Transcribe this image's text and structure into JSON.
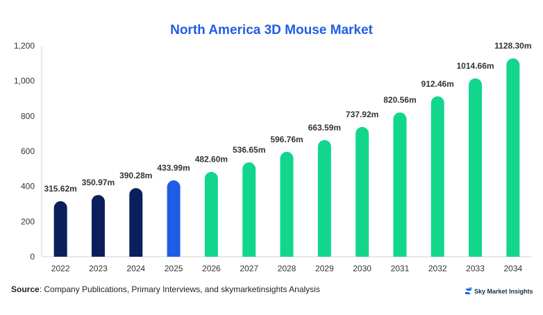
{
  "chart_data": {
    "type": "bar",
    "title": "North America 3D Mouse Market",
    "categories": [
      "2022",
      "2023",
      "2024",
      "2025",
      "2026",
      "2027",
      "2028",
      "2029",
      "2030",
      "2031",
      "2032",
      "2033",
      "2034"
    ],
    "values": [
      315.62,
      350.97,
      390.28,
      433.99,
      482.6,
      536.65,
      596.76,
      663.59,
      737.92,
      820.56,
      912.46,
      1014.66,
      1128.3
    ],
    "data_labels": [
      "315.62m",
      "350.97m",
      "390.28m",
      "433.99m",
      "482.60m",
      "536.65m",
      "596.76m",
      "663.59m",
      "737.92m",
      "820.56m",
      "912.46m",
      "1014.66m",
      "1128.30m"
    ],
    "y_ticks": [
      0,
      200,
      400,
      600,
      800,
      1000,
      1200
    ],
    "y_tick_labels": [
      "0",
      "200",
      "400",
      "600",
      "800",
      "1,000",
      "1,200"
    ],
    "ylim": [
      0,
      1200
    ],
    "xlabel": "",
    "ylabel": "",
    "grid": false,
    "legend": "none",
    "bar_colors": [
      "#0b1f5c",
      "#0b1f5c",
      "#0b1f5c",
      "#1f5de6",
      "#12d68c",
      "#12d68c",
      "#12d68c",
      "#12d68c",
      "#12d68c",
      "#12d68c",
      "#12d68c",
      "#12d68c",
      "#12d68c"
    ]
  },
  "footer": {
    "source_label": "Source",
    "source_text": ": Company Publications, Primary Interviews, and skymarketinsights Analysis",
    "brand": "Sky Market Insights",
    "brand_icon": "sky-market-insights-logo-icon"
  }
}
